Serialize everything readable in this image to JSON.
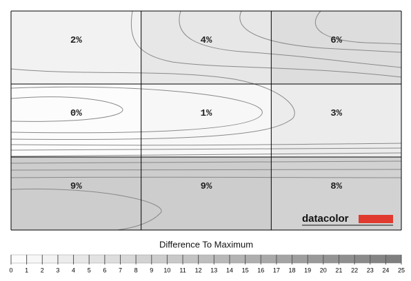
{
  "chart_data": {
    "type": "heatmap",
    "values": [
      [
        2,
        4,
        6
      ],
      [
        0,
        1,
        3
      ],
      [
        9,
        9,
        8
      ]
    ],
    "value_labels": [
      [
        "2%",
        "4%",
        "6%"
      ],
      [
        "0%",
        "1%",
        "3%"
      ],
      [
        "9%",
        "9%",
        "8%"
      ]
    ],
    "colorbar": {
      "title": "Difference To Maximum",
      "lim": [
        0,
        25
      ],
      "ticks": [
        0,
        1,
        2,
        3,
        4,
        5,
        6,
        7,
        8,
        9,
        10,
        11,
        12,
        13,
        14,
        15,
        16,
        17,
        18,
        19,
        20,
        21,
        22,
        23,
        24,
        25
      ]
    },
    "logo": "datacolor"
  }
}
